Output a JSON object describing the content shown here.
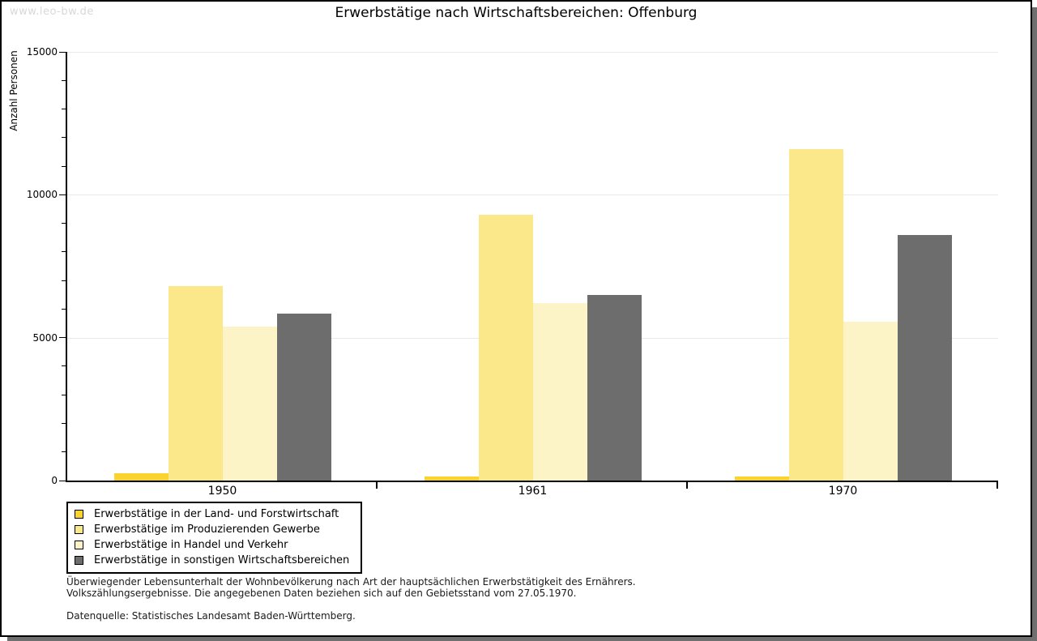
{
  "watermark": "www.leo-bw.de",
  "chart_data": {
    "type": "bar",
    "title": "Erwerbstätige nach Wirtschaftsbereichen: Offenburg",
    "ylabel": "Anzahl Personen",
    "xlabel": "",
    "categories": [
      "1950",
      "1961",
      "1970"
    ],
    "series": [
      {
        "name": "Erwerbstätige in der Land- und Forstwirtschaft",
        "color": "#FAD32E",
        "values": [
          250,
          140,
          150
        ]
      },
      {
        "name": "Erwerbstätige im Produzierenden Gewerbe",
        "color": "#FBE88B",
        "values": [
          6800,
          9300,
          11600
        ]
      },
      {
        "name": "Erwerbstätige in Handel und Verkehr",
        "color": "#FCF4C6",
        "values": [
          5400,
          6200,
          5550
        ]
      },
      {
        "name": "Erwerbstätige in sonstigen Wirtschaftsbereichen",
        "color": "#6D6D6D",
        "values": [
          5850,
          6500,
          8600
        ]
      }
    ],
    "ylim": [
      0,
      15000
    ],
    "ytick_major": 5000,
    "ytick_minor": 1000,
    "grid": "horizontal gridlines at major ticks",
    "legend_position": "bottom-left"
  },
  "footer": {
    "notes": [
      "Überwiegender Lebensunterhalt der Wohnbevölkerung nach Art der hauptsächlichen Erwerbstätigkeit des Ernährers.",
      "Volkszählungsergebnisse. Die angegebenen Daten beziehen sich auf den Gebietsstand vom 27.05.1970."
    ],
    "source": "Datenquelle: Statistisches Landesamt Baden-Württemberg."
  }
}
